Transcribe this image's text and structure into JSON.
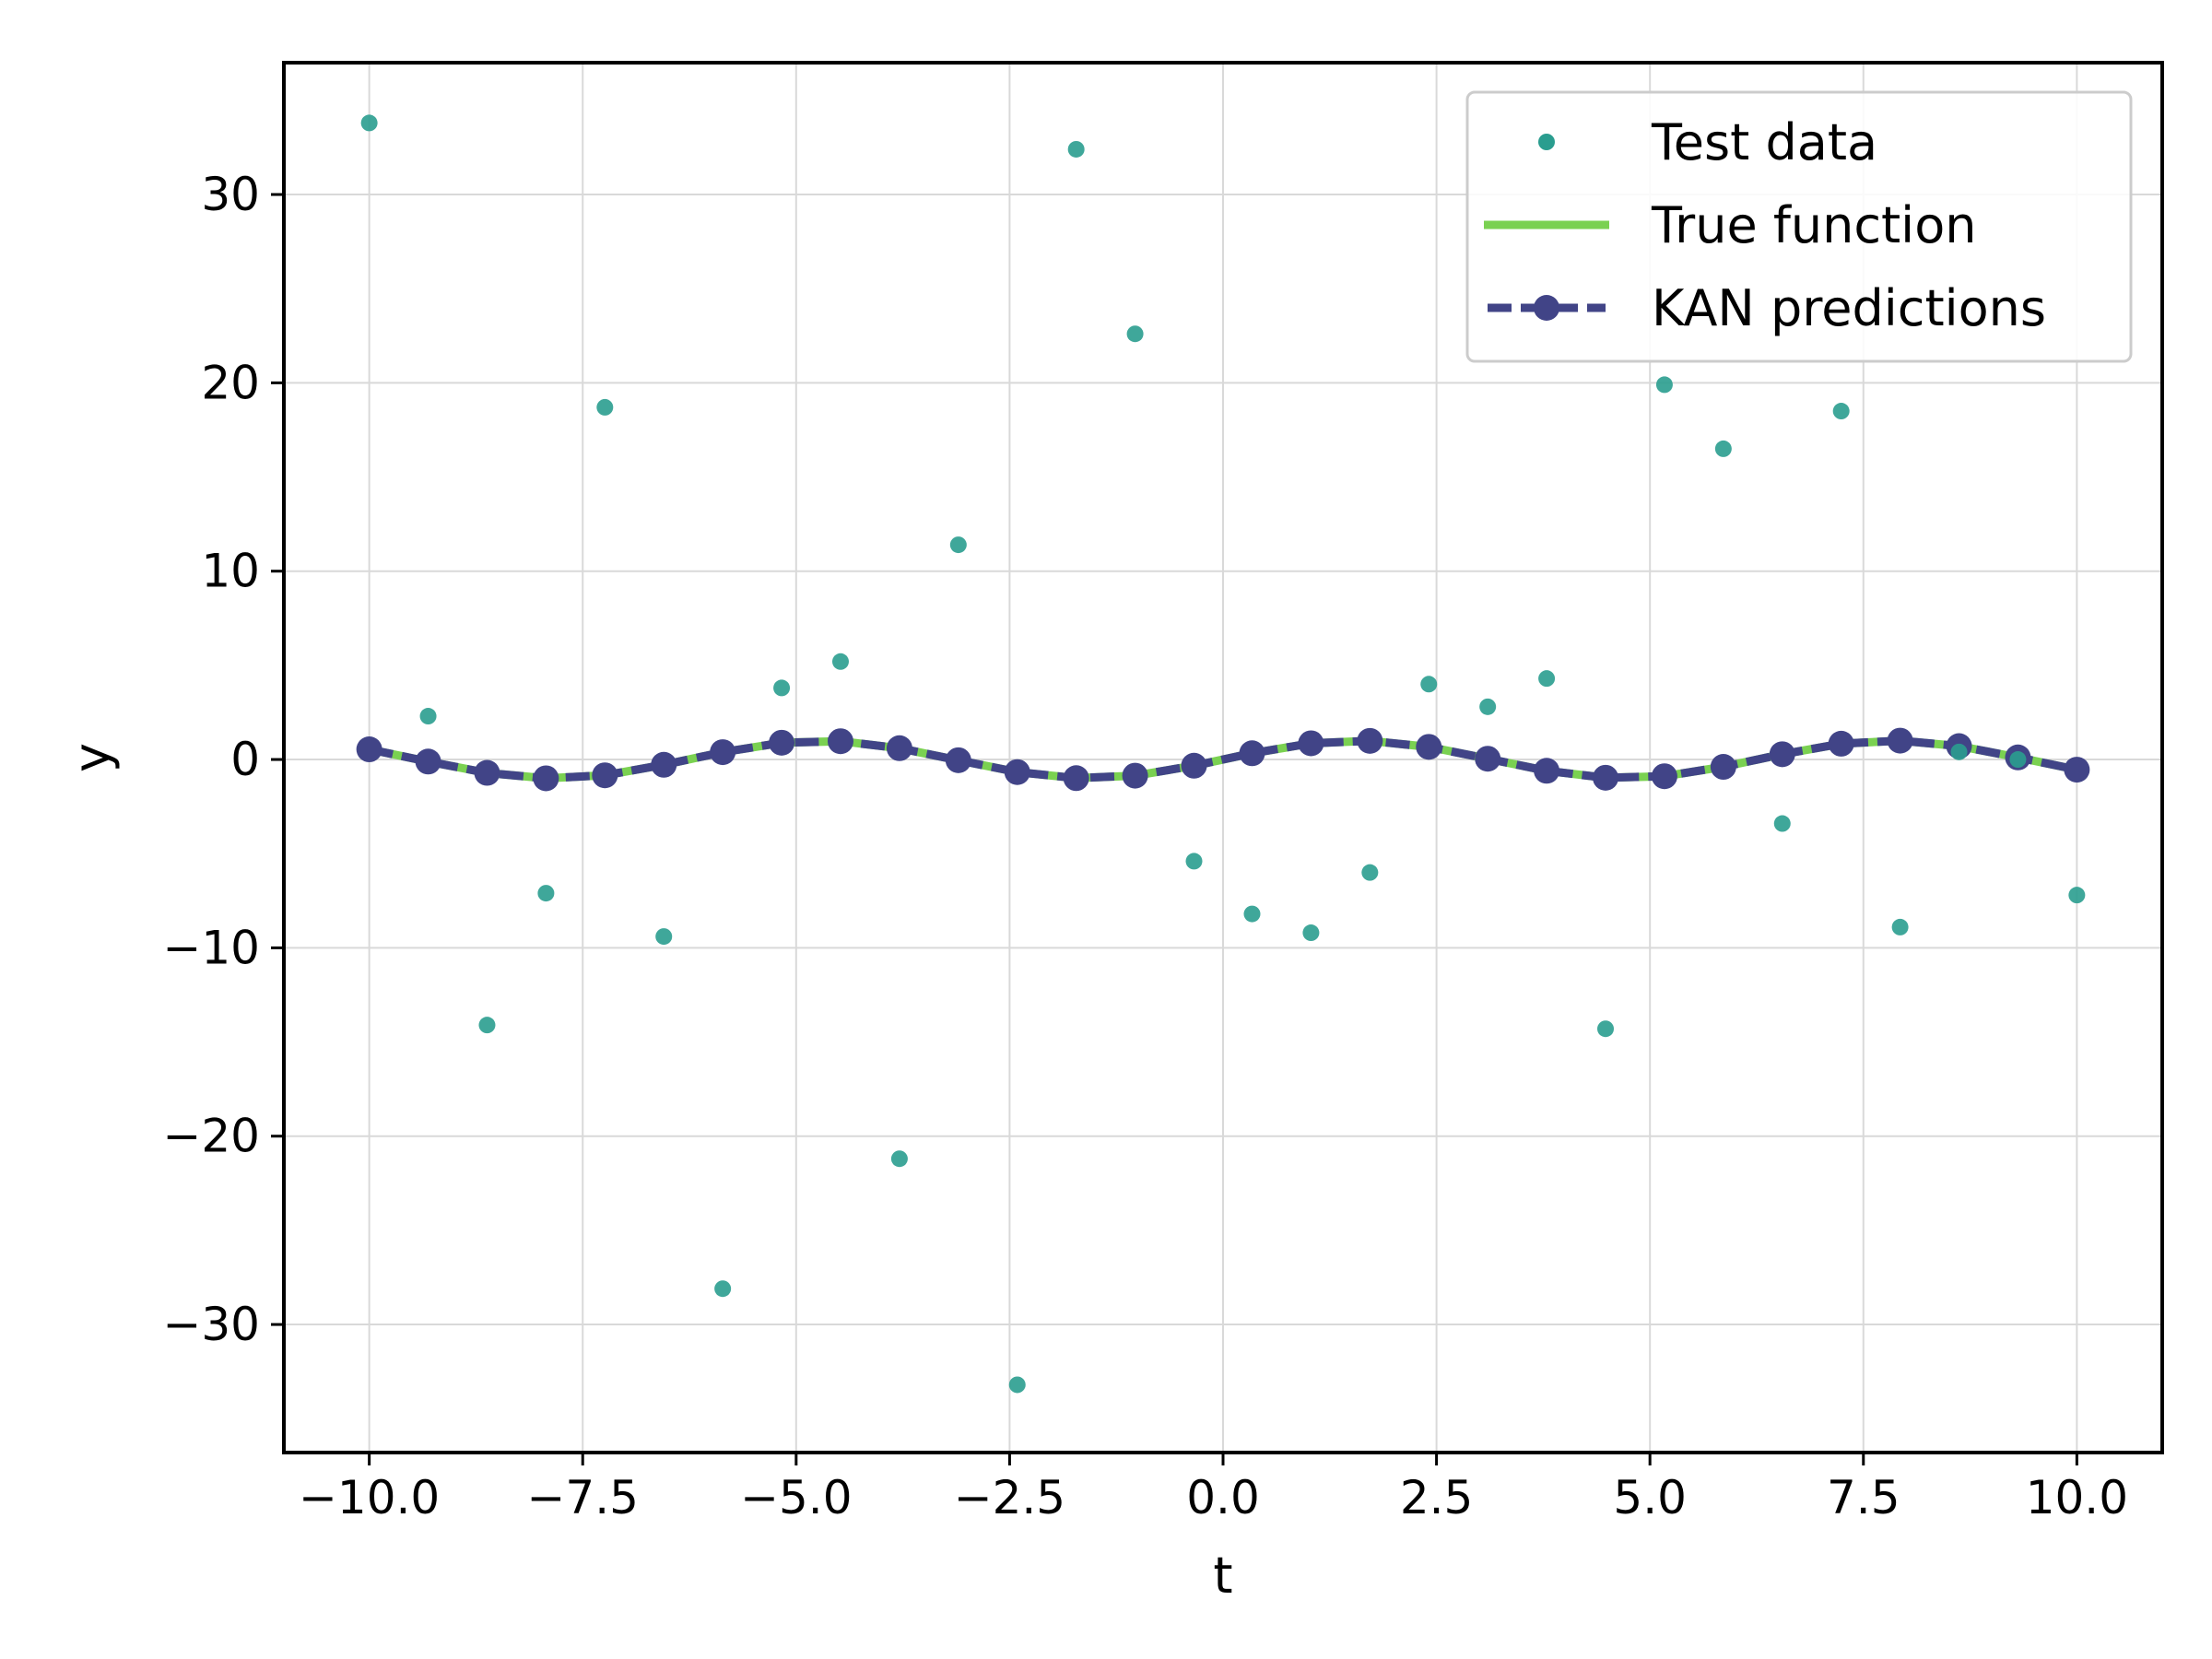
{
  "chart_data": {
    "type": "line",
    "title": "",
    "xlabel": "t",
    "ylabel": "y",
    "xlim": [
      -11.0,
      11.0
    ],
    "ylim": [
      -36.8,
      37.0
    ],
    "grid": true,
    "legend_position": "top-right",
    "xticks": [
      -10.0,
      -7.5,
      -5.0,
      -2.5,
      0.0,
      2.5,
      5.0,
      7.5,
      10.0
    ],
    "xtick_labels": [
      "−10.0",
      "−7.5",
      "−5.0",
      "−2.5",
      "0.0",
      "2.5",
      "5.0",
      "7.5",
      "10.0"
    ],
    "yticks": [
      -30,
      -20,
      -10,
      0,
      10,
      20,
      30
    ],
    "ytick_labels": [
      "−30",
      "−20",
      "−10",
      "0",
      "10",
      "20",
      "30"
    ],
    "series": [
      {
        "name": "Test data",
        "kind": "scatter",
        "color": "#2a9d8f",
        "x": [
          -10.0,
          -9.31,
          -8.62,
          -7.93,
          -7.24,
          -6.55,
          -5.86,
          -5.17,
          -4.48,
          -3.79,
          -3.1,
          -2.41,
          -1.72,
          -1.03,
          -0.34,
          0.34,
          1.03,
          1.72,
          2.41,
          3.1,
          3.79,
          4.48,
          5.17,
          5.86,
          6.55,
          7.24,
          7.93,
          8.62,
          9.31,
          10.0
        ],
        "y": [
          33.8,
          2.3,
          -14.1,
          -7.1,
          18.7,
          -9.4,
          -28.1,
          3.8,
          5.2,
          -21.2,
          11.4,
          -33.2,
          32.4,
          22.6,
          -5.4,
          -8.2,
          -9.2,
          -6.0,
          4.0,
          2.8,
          4.3,
          -14.3,
          19.9,
          16.5,
          -3.4,
          18.5,
          -8.9,
          0.4,
          0.0,
          -7.2
        ]
      },
      {
        "name": "True function",
        "kind": "line",
        "color": "#7ad151",
        "x": [
          -10.0,
          -9.31,
          -8.62,
          -7.93,
          -7.24,
          -6.55,
          -5.86,
          -5.17,
          -4.48,
          -3.79,
          -3.1,
          -2.41,
          -1.72,
          -1.03,
          -0.34,
          0.34,
          1.03,
          1.72,
          2.41,
          3.1,
          3.79,
          4.48,
          5.17,
          5.86,
          6.55,
          7.24,
          7.93,
          8.62,
          9.31,
          10.0
        ],
        "y": [
          0.54,
          -0.11,
          -0.71,
          -1.0,
          -0.84,
          -0.28,
          0.39,
          0.89,
          0.97,
          0.6,
          -0.04,
          -0.67,
          -0.99,
          -0.86,
          -0.33,
          0.33,
          0.86,
          0.99,
          0.67,
          0.04,
          -0.6,
          -0.97,
          -0.89,
          -0.39,
          0.28,
          0.84,
          1.0,
          0.71,
          0.11,
          -0.54
        ]
      },
      {
        "name": "KAN predictions",
        "kind": "line-marker",
        "color": "#414487",
        "x": [
          -10.0,
          -9.31,
          -8.62,
          -7.93,
          -7.24,
          -6.55,
          -5.86,
          -5.17,
          -4.48,
          -3.79,
          -3.1,
          -2.41,
          -1.72,
          -1.03,
          -0.34,
          0.34,
          1.03,
          1.72,
          2.41,
          3.1,
          3.79,
          4.48,
          5.17,
          5.86,
          6.55,
          7.24,
          7.93,
          8.62,
          9.31,
          10.0
        ],
        "y": [
          0.54,
          -0.11,
          -0.71,
          -1.0,
          -0.84,
          -0.28,
          0.39,
          0.89,
          0.97,
          0.6,
          -0.04,
          -0.67,
          -0.99,
          -0.86,
          -0.33,
          0.33,
          0.86,
          0.99,
          0.67,
          0.04,
          -0.6,
          -0.97,
          -0.89,
          -0.39,
          0.28,
          0.84,
          1.0,
          0.71,
          0.11,
          -0.54
        ]
      }
    ]
  }
}
